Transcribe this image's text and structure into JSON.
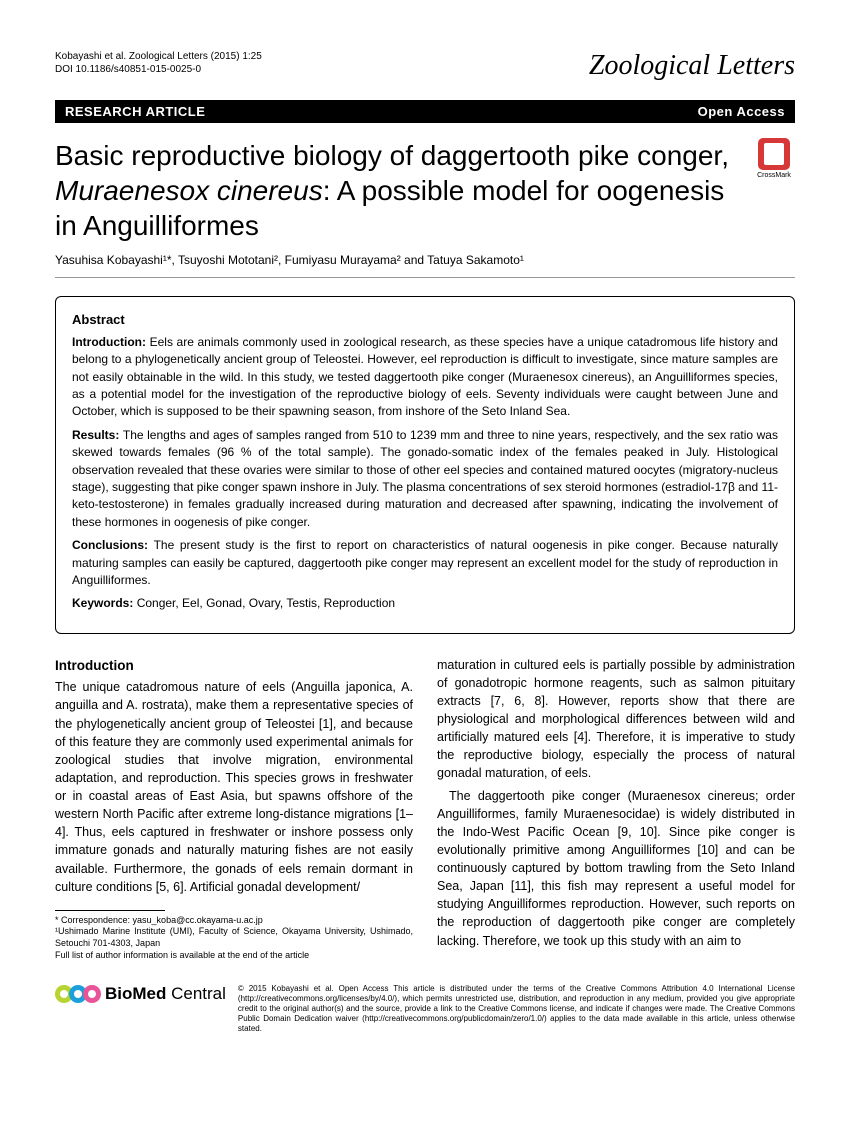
{
  "header": {
    "citation": "Kobayashi et al. Zoological Letters (2015) 1:25",
    "doi": "DOI 10.1186/s40851-015-0025-0",
    "journal": "Zoological Letters"
  },
  "banner": {
    "left": "RESEARCH ARTICLE",
    "right": "Open Access"
  },
  "title": {
    "part1": "Basic reproductive biology of daggertooth pike conger, ",
    "italic": "Muraenesox cinereus",
    "part2": ": A possible model for oogenesis in Anguilliformes"
  },
  "crossmark_label": "CrossMark",
  "authors": "Yasuhisa Kobayashi¹*, Tsuyoshi Mototani², Fumiyasu Murayama² and Tatuya Sakamoto¹",
  "abstract": {
    "heading": "Abstract",
    "intro_label": "Introduction: ",
    "intro": "Eels are animals commonly used in zoological research, as these species have a unique catadromous life history and belong to a phylogenetically ancient group of Teleostei. However, eel reproduction is difficult to investigate, since mature samples are not easily obtainable in the wild. In this study, we tested daggertooth pike conger (Muraenesox cinereus), an Anguilliformes species, as a potential model for the investigation of the reproductive biology of eels. Seventy individuals were caught between June and October, which is supposed to be their spawning season, from inshore of the Seto Inland Sea.",
    "results_label": "Results: ",
    "results": "The lengths and ages of samples ranged from 510 to 1239 mm and three to nine years, respectively, and the sex ratio was skewed towards females (96 % of the total sample). The gonado-somatic index of the females peaked in July. Histological observation revealed that these ovaries were similar to those of other eel species and contained matured oocytes (migratory-nucleus stage), suggesting that pike conger spawn inshore in July. The plasma concentrations of sex steroid hormones (estradiol-17β and 11-keto-testosterone) in females gradually increased during maturation and decreased after spawning, indicating the involvement of these hormones in oogenesis of pike conger.",
    "conclusions_label": "Conclusions: ",
    "conclusions": "The present study is the first to report on characteristics of natural oogenesis in pike conger. Because naturally maturing samples can easily be captured, daggertooth pike conger may represent an excellent model for the study of reproduction in Anguilliformes.",
    "keywords_label": "Keywords: ",
    "keywords": "Conger, Eel, Gonad, Ovary, Testis, Reproduction"
  },
  "body": {
    "intro_heading": "Introduction",
    "left_p1": "The unique catadromous nature of eels (Anguilla japonica, A. anguilla and A. rostrata), make them a representative species of the phylogenetically ancient group of Teleostei [1], and because of this feature they are commonly used experimental animals for zoological studies that involve migration, environmental adaptation, and reproduction. This species grows in freshwater or in coastal areas of East Asia, but spawns offshore of the western North Pacific after extreme long-distance migrations [1–4]. Thus, eels captured in freshwater or inshore possess only immature gonads and naturally maturing fishes are not easily available. Furthermore, the gonads of eels remain dormant in culture conditions [5, 6]. Artificial gonadal development/",
    "right_p1": "maturation in cultured eels is partially possible by administration of gonadotropic hormone reagents, such as salmon pituitary extracts [7, 6, 8]. However, reports show that there are physiological and morphological differences between wild and artificially matured eels [4]. Therefore, it is imperative to study the reproductive biology, especially the process of natural gonadal maturation, of eels.",
    "right_p2": "The daggertooth pike conger (Muraenesox cinereus; order Anguilliformes, family Muraenesocidae) is widely distributed in the Indo-West Pacific Ocean [9, 10]. Since pike conger is evolutionally primitive among Anguilliformes [10] and can be continuously captured by bottom trawling from the Seto Inland Sea, Japan [11], this fish may represent a useful model for studying Anguilliformes reproduction. However, such reports on the reproduction of daggertooth pike conger are completely lacking. Therefore, we took up this study with an aim to"
  },
  "footnotes": {
    "line1": "* Correspondence: yasu_koba@cc.okayama-u.ac.jp",
    "line2": "¹Ushimado Marine Institute (UMI), Faculty of Science, Okayama University, Ushimado, Setouchi 701-4303, Japan",
    "line3": "Full list of author information is available at the end of the article"
  },
  "footer": {
    "logo_bio": "Bio",
    "logo_med": "Med",
    "logo_central": " Central",
    "license": "© 2015 Kobayashi et al. Open Access This article is distributed under the terms of the Creative Commons Attribution 4.0 International License (http://creativecommons.org/licenses/by/4.0/), which permits unrestricted use, distribution, and reproduction in any medium, provided you give appropriate credit to the original author(s) and the source, provide a link to the Creative Commons license, and indicate if changes were made. The Creative Commons Public Domain Dedication waiver (http://creativecommons.org/publicdomain/zero/1.0/) applies to the data made available in this article, unless otherwise stated."
  },
  "colors": {
    "cog1": "#b8d432",
    "cog2": "#1ba0db",
    "cog3": "#e85498"
  }
}
